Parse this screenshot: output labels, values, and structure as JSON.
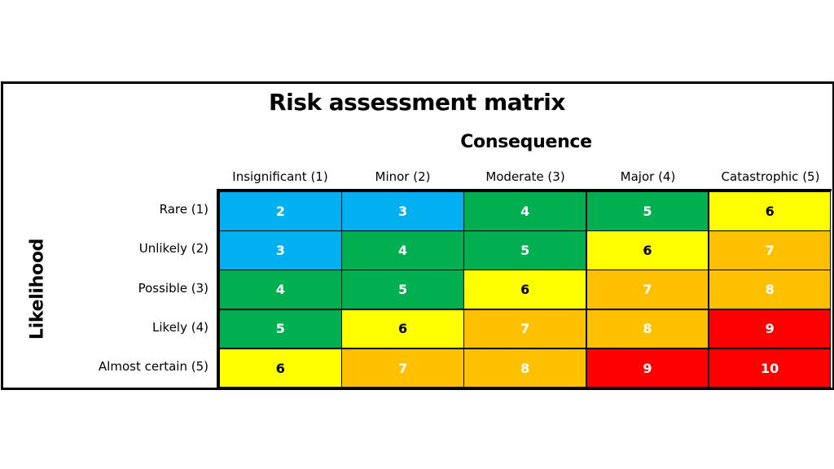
{
  "chart_data": {
    "type": "heatmap",
    "title": "Risk assessment matrix",
    "xlabel": "Consequence",
    "ylabel": "Likelihood",
    "columns": [
      "Insignificant (1)",
      "Minor (2)",
      "Moderate (3)",
      "Major (4)",
      "Catastrophic (5)"
    ],
    "rows": [
      "Rare (1)",
      "Unlikely (2)",
      "Possible (3)",
      "Likely (4)",
      "Almost certain (5)"
    ],
    "values": [
      [
        2,
        3,
        4,
        5,
        6
      ],
      [
        3,
        4,
        5,
        6,
        7
      ],
      [
        4,
        5,
        6,
        7,
        8
      ],
      [
        5,
        6,
        7,
        8,
        9
      ],
      [
        6,
        7,
        8,
        9,
        10
      ]
    ],
    "color_scale": {
      "2": "#00b0f0",
      "3": "#00b0f0",
      "4": "#00b050",
      "5": "#00b050",
      "6": "#ffff00",
      "7": "#ffc000",
      "8": "#ffc000",
      "9": "#ff0000",
      "10": "#ff0000"
    },
    "text_color_scale": {
      "2": "#ffffff",
      "3": "#ffffff",
      "4": "#ffffff",
      "5": "#ffffff",
      "6": "#000000",
      "7": "#ffffff",
      "8": "#ffffff",
      "9": "#ffffff",
      "10": "#ffffff"
    }
  }
}
